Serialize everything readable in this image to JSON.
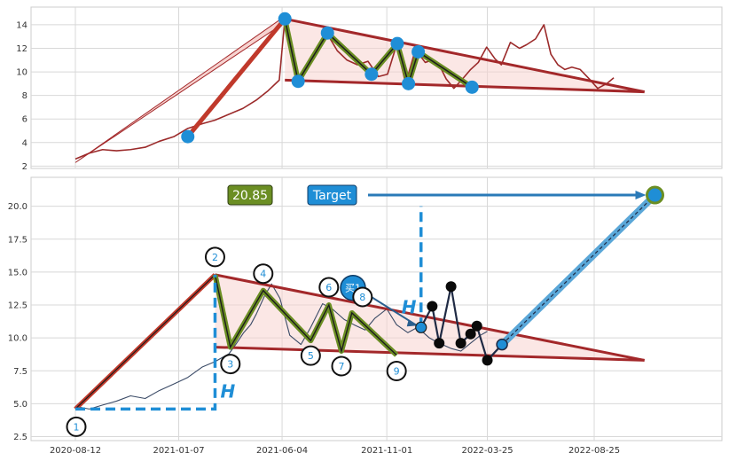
{
  "chart_data": [
    {
      "panel": "top",
      "type": "line",
      "title": "",
      "xlabel": "",
      "ylabel": "",
      "ylim": [
        1.8,
        15.5
      ],
      "grid": true,
      "yticks": [
        2,
        4,
        6,
        8,
        10,
        12,
        14
      ],
      "series": [
        {
          "color": "#9b2a2a",
          "x": [
            "2020-08-12",
            "2020-09-01",
            "2020-09-20",
            "2020-10-10",
            "2020-10-30",
            "2020-11-20",
            "2020-12-10",
            "2020-12-31",
            "2021-01-20",
            "2021-02-10",
            "2021-02-28",
            "2021-03-20",
            "2021-04-09",
            "2021-04-28",
            "2021-05-15",
            "2021-05-31",
            "2021-06-08",
            "2021-06-20",
            "2021-07-01",
            "2021-07-13",
            "2021-07-25",
            "2021-08-08",
            "2021-08-22",
            "2021-09-05",
            "2021-09-20",
            "2021-10-05",
            "2021-10-20",
            "2021-11-02",
            "2021-11-15",
            "2021-11-28",
            "2021-12-12",
            "2021-12-26",
            "2022-01-05",
            "2022-01-15",
            "2022-01-25",
            "2022-02-05",
            "2022-02-16",
            "2022-03-01",
            "2022-03-12",
            "2022-03-24",
            "2022-04-05",
            "2022-04-14",
            "2022-04-27",
            "2022-05-10",
            "2022-05-20",
            "2022-06-02",
            "2022-06-14",
            "2022-06-24",
            "2022-07-04",
            "2022-07-14",
            "2022-07-24",
            "2022-08-05",
            "2022-08-18",
            "2022-08-30",
            "2022-09-12",
            "2022-09-22"
          ],
          "y": [
            2.6,
            3.1,
            3.4,
            3.3,
            3.4,
            3.6,
            4.1,
            4.5,
            5.2,
            5.6,
            5.9,
            6.4,
            6.9,
            7.6,
            8.4,
            9.3,
            14.5,
            10.5,
            9.2,
            10.6,
            12.0,
            13.2,
            11.8,
            11.0,
            10.6,
            10.9,
            9.6,
            9.8,
            12.3,
            9.0,
            11.9,
            10.8,
            11.0,
            10.6,
            9.4,
            8.6,
            9.3,
            10.2,
            10.8,
            12.1,
            11.1,
            10.6,
            12.5,
            12.0,
            12.3,
            12.8,
            14.0,
            11.5,
            10.6,
            10.2,
            10.4,
            10.2,
            9.4,
            8.6,
            9.0,
            9.5
          ]
        }
      ],
      "annotations": {
        "pivots": [
          {
            "x": "2021-01-20",
            "y": 4.5
          },
          {
            "x": "2021-06-08",
            "y": 14.5
          },
          {
            "x": "2021-06-27",
            "y": 9.2
          },
          {
            "x": "2021-08-08",
            "y": 13.3
          },
          {
            "x": "2021-10-10",
            "y": 9.8
          },
          {
            "x": "2021-11-16",
            "y": 12.4
          },
          {
            "x": "2021-12-02",
            "y": 9.0
          },
          {
            "x": "2021-12-16",
            "y": 11.7
          },
          {
            "x": "2022-03-03",
            "y": 8.7
          }
        ],
        "upper_trend": [
          {
            "x": "2021-06-08",
            "y": 14.5
          },
          {
            "x": "2022-11-05",
            "y": 8.3
          }
        ],
        "lower_trend": [
          {
            "x": "2021-06-08",
            "y": 9.3
          },
          {
            "x": "2022-11-05",
            "y": 8.3
          }
        ],
        "leg_arrow": [
          {
            "x": "2020-08-12",
            "y": 2.3
          },
          {
            "x": "2021-06-08",
            "y": 14.5
          }
        ]
      }
    },
    {
      "panel": "bottom",
      "type": "line",
      "title": "",
      "xlabel": "",
      "ylabel": "",
      "ylim": [
        2.2,
        22.2
      ],
      "grid": true,
      "yticks": [
        2.5,
        5.0,
        7.5,
        10.0,
        12.5,
        15.0,
        17.5,
        20.0
      ],
      "ytick_labels": [
        "2.5",
        "5.0",
        "7.5",
        "10.0",
        "12.5",
        "15.0",
        "17.5",
        "20.0"
      ],
      "xticks": [
        "2020-08-12",
        "2021-01-07",
        "2021-06-04",
        "2021-11-01",
        "2022-03-25",
        "2022-08-25"
      ],
      "series": [
        {
          "color": "#3a4a66",
          "x": [
            "2020-08-12",
            "2020-09-01",
            "2020-09-20",
            "2020-10-10",
            "2020-10-30",
            "2020-11-20",
            "2020-12-10",
            "2020-12-31",
            "2021-01-20",
            "2021-02-10",
            "2021-02-28",
            "2021-03-20",
            "2021-03-31",
            "2021-04-10",
            "2021-04-20",
            "2021-04-28",
            "2021-05-10",
            "2021-05-20",
            "2021-06-01",
            "2021-06-15",
            "2021-07-01",
            "2021-07-15",
            "2021-08-01",
            "2021-08-15",
            "2021-09-01",
            "2021-09-15",
            "2021-10-01",
            "2021-10-15",
            "2021-11-01",
            "2021-11-15",
            "2021-12-01",
            "2021-12-15",
            "2022-01-01",
            "2022-01-15",
            "2022-02-01",
            "2022-02-15",
            "2022-03-01",
            "2022-03-15",
            "2022-03-25"
          ],
          "y": [
            4.8,
            4.6,
            4.9,
            5.2,
            5.6,
            5.4,
            6.0,
            6.5,
            7.0,
            7.8,
            8.2,
            8.8,
            9.6,
            10.4,
            11.0,
            11.8,
            13.2,
            14.1,
            13.0,
            10.2,
            9.5,
            10.8,
            12.6,
            12.2,
            11.4,
            11.0,
            10.6,
            11.5,
            12.2,
            11.0,
            10.4,
            10.8,
            10.0,
            9.6,
            9.2,
            9.0,
            9.6,
            10.2,
            10.5
          ]
        }
      ],
      "annotations": {
        "points": [
          {
            "label": "1",
            "x": "2020-08-12",
            "y": 4.6
          },
          {
            "label": "2",
            "x": "2021-02-28",
            "y": 14.8
          },
          {
            "label": "3",
            "x": "2021-03-22",
            "y": 9.3
          },
          {
            "label": "4",
            "x": "2021-05-08",
            "y": 13.6
          },
          {
            "label": "5",
            "x": "2021-07-15",
            "y": 9.8
          },
          {
            "label": "6",
            "x": "2021-08-10",
            "y": 12.5
          },
          {
            "label": "7",
            "x": "2021-08-28",
            "y": 9.0
          },
          {
            "label": "8",
            "x": "2021-09-12",
            "y": 11.9
          },
          {
            "label": "9",
            "x": "2021-11-15",
            "y": 8.7
          }
        ],
        "upper_trend": [
          {
            "x": "2021-02-28",
            "y": 14.8
          },
          {
            "x": "2022-11-05",
            "y": 8.3
          }
        ],
        "lower_trend": [
          {
            "x": "2021-02-28",
            "y": 9.3
          },
          {
            "x": "2022-11-05",
            "y": 8.3
          }
        ],
        "measure_h_label": "H",
        "buy_marker": {
          "label": "买1",
          "x": "2021-12-20",
          "y": 10.8
        },
        "price_box": {
          "value": "20.85"
        },
        "target_box": {
          "label": "Target"
        },
        "target_point": {
          "x": "2022-11-20",
          "y": 20.85
        },
        "future_path": [
          {
            "x": "2021-12-20",
            "y": 10.8
          },
          {
            "x": "2022-01-05",
            "y": 12.4
          },
          {
            "x": "2022-01-15",
            "y": 9.6
          },
          {
            "x": "2022-02-01",
            "y": 13.9
          },
          {
            "x": "2022-02-15",
            "y": 9.6
          },
          {
            "x": "2022-03-01",
            "y": 10.3
          },
          {
            "x": "2022-03-10",
            "y": 10.9
          },
          {
            "x": "2022-03-25",
            "y": 8.3
          },
          {
            "x": "2022-04-15",
            "y": 9.5
          },
          {
            "x": "2022-11-20",
            "y": 20.85
          }
        ]
      }
    }
  ]
}
